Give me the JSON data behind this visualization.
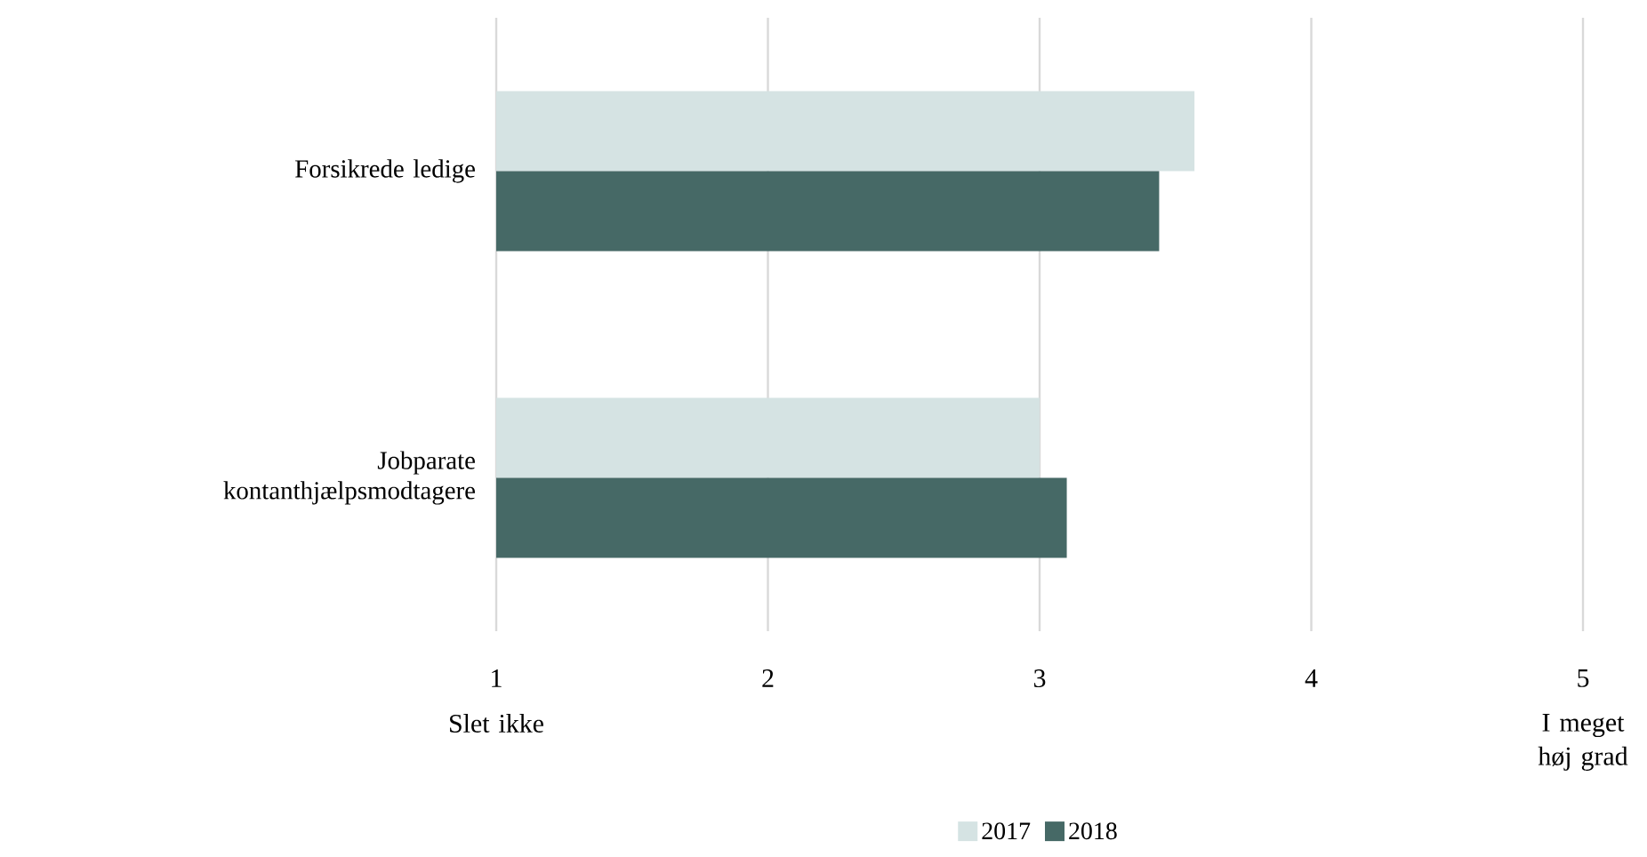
{
  "chart_data": {
    "type": "bar",
    "orientation": "horizontal",
    "categories": [
      "Forsikrede ledige",
      "Jobparate kontanthjælpsmodtagere"
    ],
    "series": [
      {
        "name": "2017",
        "color": "#d5e3e3",
        "values": [
          3.57,
          3.0
        ]
      },
      {
        "name": "2018",
        "color": "#466966",
        "values": [
          3.44,
          3.1
        ]
      }
    ],
    "xlim": [
      1,
      5
    ],
    "xticks": [
      1,
      2,
      3,
      4,
      5
    ],
    "grid": "x",
    "legend": "bottom",
    "annotations": [
      "Slet ikke",
      "I meget høj grad"
    ]
  }
}
